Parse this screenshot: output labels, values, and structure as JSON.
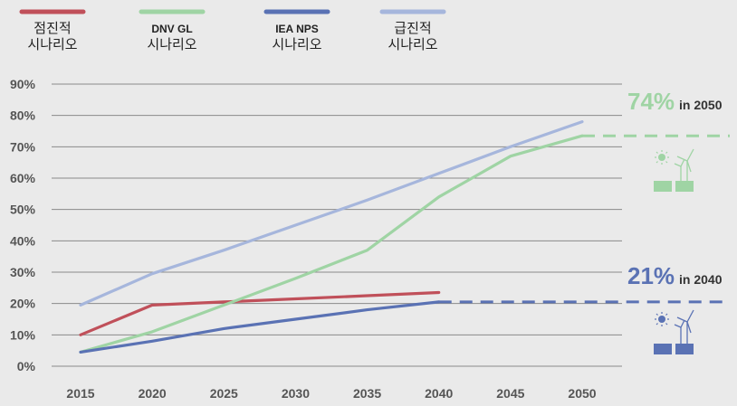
{
  "chart_data": {
    "type": "line",
    "x": [
      2015,
      2020,
      2025,
      2030,
      2035,
      2040,
      2045,
      2050
    ],
    "x_tick_labels": [
      "2015",
      "2020",
      "2025",
      "2030",
      "2035",
      "2040",
      "2045",
      "2050"
    ],
    "y_tick_labels": [
      "0%",
      "10%",
      "20%",
      "30%",
      "40%",
      "50%",
      "60%",
      "70%",
      "80%",
      "90%"
    ],
    "ylim": [
      0,
      90
    ],
    "grid": true,
    "series": [
      {
        "name_line1": "점진적",
        "name_line2": "시나리오",
        "color": "#c0505a",
        "points": [
          [
            2015,
            10
          ],
          [
            2020,
            19.5
          ],
          [
            2025,
            20.5
          ],
          [
            2030,
            21.5
          ],
          [
            2035,
            22.5
          ],
          [
            2040,
            23.5
          ]
        ]
      },
      {
        "name_line1": "DNV GL",
        "name_line2": "시나리오",
        "color": "#9fd4a4",
        "points": [
          [
            2015,
            4.5
          ],
          [
            2020,
            11
          ],
          [
            2025,
            19.5
          ],
          [
            2030,
            28
          ],
          [
            2035,
            37
          ],
          [
            2040,
            54
          ],
          [
            2045,
            67
          ],
          [
            2050,
            73.5
          ]
        ]
      },
      {
        "name_line1": "IEA NPS",
        "name_line2": "시나리오",
        "color": "#5a72b4",
        "points": [
          [
            2015,
            4.5
          ],
          [
            2020,
            8
          ],
          [
            2025,
            12
          ],
          [
            2030,
            15
          ],
          [
            2035,
            18
          ],
          [
            2040,
            20.5
          ]
        ]
      },
      {
        "name_line1": "급진적",
        "name_line2": "시나리오",
        "color": "#a6b6dc",
        "points": [
          [
            2015,
            19.5
          ],
          [
            2020,
            29.5
          ],
          [
            2025,
            37
          ],
          [
            2030,
            45
          ],
          [
            2035,
            53
          ],
          [
            2040,
            61.5
          ],
          [
            2045,
            70
          ],
          [
            2050,
            78
          ]
        ]
      }
    ],
    "annotations": [
      {
        "pct": "74%",
        "suffix": "in 2050",
        "color": "#9fd4a4",
        "level": 73.5
      },
      {
        "pct": "21%",
        "suffix": "in 2040",
        "color": "#5a72b4",
        "level": 20.5
      }
    ]
  }
}
